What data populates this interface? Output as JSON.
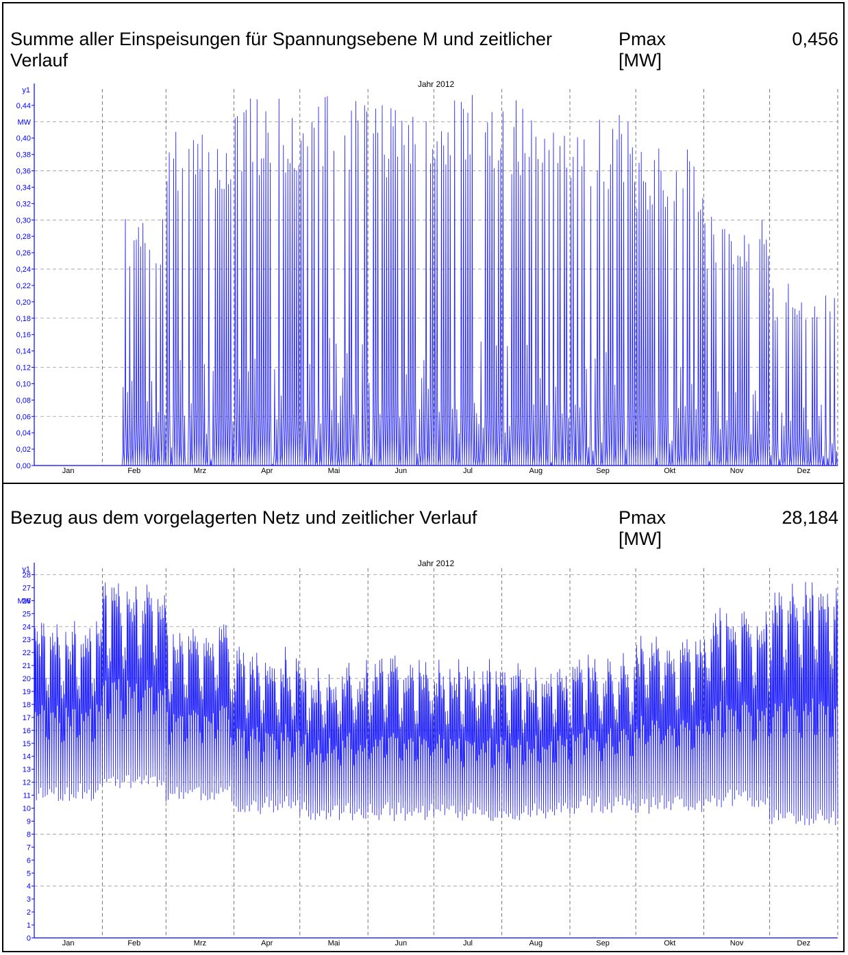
{
  "panels": [
    {
      "title": "Summe aller Einspeisungen für Spannungsebene M und zeitlicher Verlauf",
      "pmax_label": "Pmax\n[MW]",
      "pmax_value": "0,456"
    },
    {
      "title": "Bezug aus dem vorgelagerten Netz und zeitlicher Verlauf",
      "pmax_label": "Pmax\n[MW]",
      "pmax_value": "28,184"
    }
  ],
  "chart_data": [
    {
      "type": "line",
      "title": "Jahr 2012",
      "y_axis_name": "y1",
      "ylabel": "MW",
      "ylim": [
        0,
        0.46
      ],
      "yticks": [
        0.0,
        0.02,
        0.04,
        0.06,
        0.08,
        0.1,
        0.12,
        0.14,
        0.16,
        0.18,
        0.2,
        0.22,
        0.24,
        0.26,
        0.28,
        0.3,
        0.32,
        0.34,
        0.36,
        0.38,
        0.4,
        0.44
      ],
      "ytick_labels": [
        "0,00",
        "0,02",
        "0,04",
        "0,06",
        "0,08",
        "0,10",
        "0,12",
        "0,14",
        "0,16",
        "0,18",
        "0,20",
        "0,22",
        "0,24",
        "0,26",
        "0,28",
        "0,30",
        "0,32",
        "0,34",
        "0,36",
        "0,38",
        "0,40",
        "0,44"
      ],
      "y_gridlines": [
        0.06,
        0.12,
        0.18,
        0.24,
        0.3,
        0.36,
        0.42
      ],
      "x_categories": [
        "Jan",
        "Feb",
        "Mrz",
        "Apr",
        "Mai",
        "Jun",
        "Jul",
        "Aug",
        "Sep",
        "Okt",
        "Nov",
        "Dez"
      ],
      "series": [
        {
          "color": "#0000ff",
          "daily_peak_envelope_by_month": [
            0.0,
            0.3,
            0.4,
            0.44,
            0.45,
            0.44,
            0.45,
            0.44,
            0.42,
            0.38,
            0.3,
            0.22
          ],
          "first_nonzero_day": 40,
          "pmax": 0.456
        }
      ]
    },
    {
      "type": "line",
      "title": "Jahr 2012",
      "y_axis_name": "y1",
      "ylabel": "MW",
      "ylim": [
        0,
        28.5
      ],
      "yticks": [
        0,
        1,
        2,
        3,
        4,
        5,
        6,
        7,
        8,
        9,
        10,
        11,
        12,
        13,
        14,
        15,
        16,
        17,
        18,
        19,
        20,
        21,
        22,
        23,
        24,
        25,
        26,
        27,
        28
      ],
      "ytick_labels": [
        "0",
        "1",
        "2",
        "3",
        "4",
        "5",
        "6",
        "7",
        "8",
        "9",
        "10",
        "11",
        "12",
        "13",
        "14",
        "15",
        "16",
        "17",
        "18",
        "19",
        "20",
        "21",
        "22",
        "23",
        "24",
        "25",
        "26",
        "27",
        "28"
      ],
      "y_gridlines": [
        4,
        8,
        12,
        16,
        20,
        24,
        28
      ],
      "x_categories": [
        "Jan",
        "Feb",
        "Mrz",
        "Apr",
        "Mai",
        "Jun",
        "Jul",
        "Aug",
        "Sep",
        "Okt",
        "Nov",
        "Dez"
      ],
      "series": [
        {
          "color": "#0000ff",
          "daily_max_by_month": [
            24.5,
            27.5,
            24.5,
            22.5,
            21.5,
            22.0,
            21.5,
            21.5,
            22.0,
            23.5,
            25.5,
            27.5
          ],
          "daily_min_by_month": [
            10.5,
            11.5,
            10.5,
            9.5,
            9.0,
            9.0,
            9.0,
            9.0,
            9.5,
            9.5,
            10.0,
            8.5
          ],
          "pmax": 28.184
        }
      ]
    }
  ]
}
